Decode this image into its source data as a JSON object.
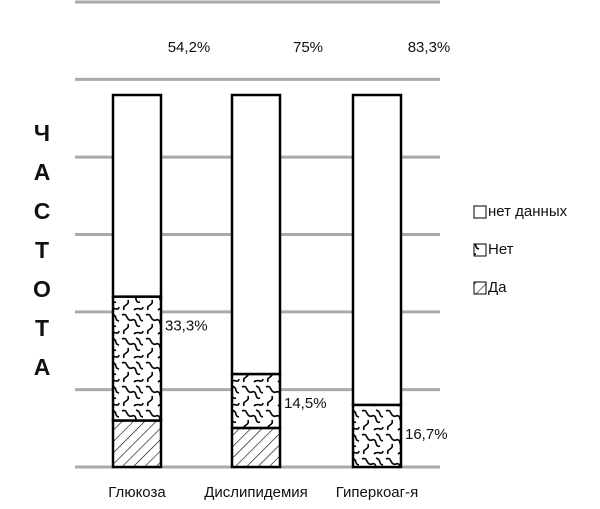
{
  "chart_data": {
    "type": "stacked_bar",
    "y_label": "ЧАСТОТА",
    "categories": [
      "Глюкоза",
      "Дислипидемия",
      "Гиперкоаг-я"
    ],
    "series": [
      {
        "name": "Да",
        "color": "#000000",
        "pattern": "hatch",
        "values": [
          12.5,
          10.5,
          0
        ]
      },
      {
        "name": "Нет",
        "color": "#000000",
        "pattern": "wave",
        "values": [
          33.3,
          14.5,
          16.7
        ],
        "value_labels": [
          "33,3%",
          "14,5%",
          "16,7%"
        ]
      },
      {
        "name": "нет данных",
        "color": "#000000",
        "pattern": "none",
        "values": [
          54.2,
          75,
          83.3
        ],
        "value_labels": [
          "54,2%",
          "75%",
          "83,3%"
        ]
      }
    ],
    "ylim": [
      0,
      125
    ],
    "yticks": [
      0,
      20.8,
      41.7,
      62.5,
      83.3,
      104.2,
      125
    ],
    "grid": true,
    "legend": "right"
  }
}
